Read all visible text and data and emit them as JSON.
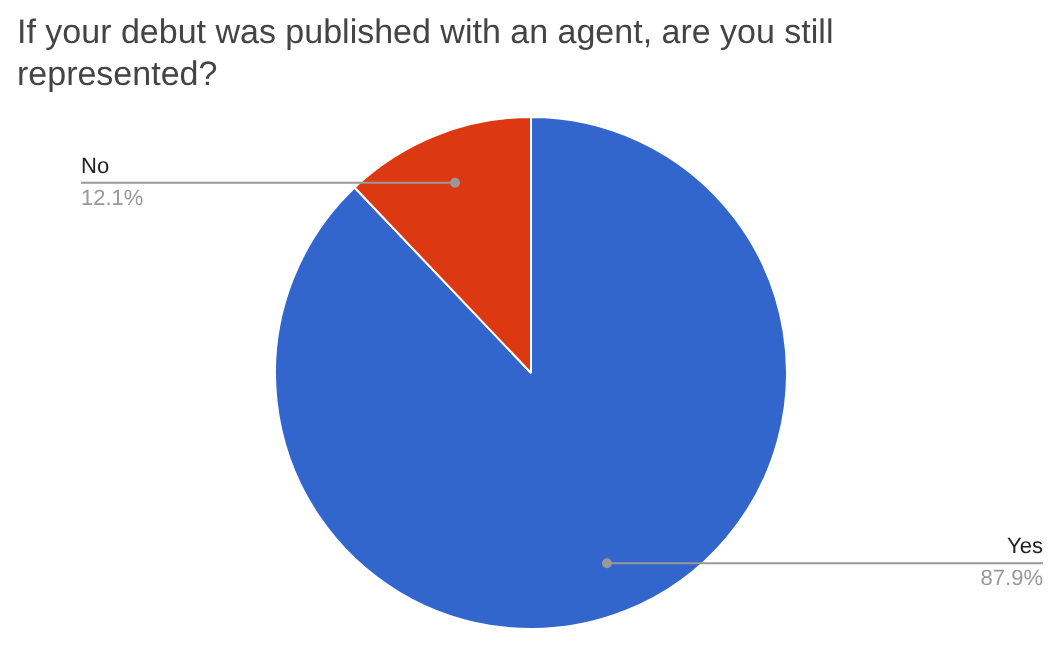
{
  "chart_data": {
    "type": "pie",
    "title": "If your debut was published with an agent, are you still represented?",
    "categories": [
      "Yes",
      "No"
    ],
    "values": [
      87.9,
      12.1
    ],
    "colors": [
      "#3366cc",
      "#dc3912"
    ],
    "value_labels": [
      "87.9%",
      "12.1%"
    ]
  }
}
